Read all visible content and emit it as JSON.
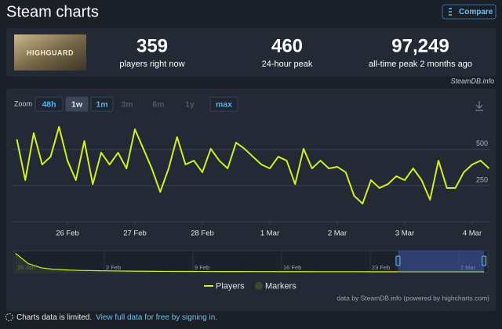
{
  "header": {
    "title": "Steam charts",
    "compare": "Compare"
  },
  "stats": {
    "image_text": "HIGHGUARD",
    "items": [
      {
        "value": "359",
        "label": "players right now"
      },
      {
        "value": "460",
        "label": "24-hour peak"
      },
      {
        "value": "97,249",
        "label": "all-time peak 2 months ago"
      }
    ],
    "source": "SteamDB.info"
  },
  "zoom": {
    "label": "Zoom",
    "options": [
      "48h",
      "1w",
      "1m",
      "3m",
      "6m",
      "1y",
      "max"
    ],
    "active_index": 1,
    "disabled_indices": [
      3,
      4,
      5
    ]
  },
  "chart_data": {
    "type": "line",
    "categories": [
      null,
      null,
      null,
      null,
      null,
      null,
      "26 Feb",
      null,
      null,
      null,
      null,
      null,
      null,
      null,
      "27 Feb",
      null,
      null,
      null,
      null,
      null,
      null,
      null,
      "28 Feb",
      null,
      null,
      null,
      null,
      null,
      null,
      null,
      "1 Mar",
      null,
      null,
      null,
      null,
      null,
      null,
      null,
      "2 Mar",
      null,
      null,
      null,
      null,
      null,
      null,
      null,
      "3 Mar",
      null,
      null,
      null,
      null,
      null,
      null,
      null,
      "4 Mar",
      null,
      null
    ],
    "series": [
      {
        "name": "Players",
        "color": "#d4ee1f",
        "values": [
          570,
          288,
          614,
          396,
          450,
          657,
          423,
          288,
          559,
          260,
          478,
          396,
          478,
          369,
          640,
          505,
          369,
          206,
          369,
          586,
          396,
          423,
          342,
          505,
          423,
          369,
          548,
          505,
          450,
          396,
          369,
          450,
          423,
          260,
          505,
          369,
          423,
          369,
          380,
          342,
          179,
          125,
          288,
          233,
          260,
          315,
          288,
          369,
          288,
          152,
          423,
          233,
          233,
          342,
          396,
          423,
          369
        ]
      }
    ],
    "ylim": [
      0,
      700
    ],
    "yticks": [
      250,
      500
    ],
    "grid": true,
    "extra_legend": [
      {
        "name": "Markers",
        "color": "#3e4a2c"
      }
    ]
  },
  "navigator": {
    "categories": [
      "26 Jan",
      null,
      null,
      null,
      null,
      null,
      null,
      "2 Feb",
      null,
      null,
      null,
      null,
      null,
      null,
      "9 Feb",
      null,
      null,
      null,
      null,
      null,
      null,
      "16 Feb",
      null,
      null,
      null,
      null,
      null,
      null,
      "23 Feb",
      null,
      null,
      null,
      null,
      null,
      null,
      "2 Mar",
      null,
      null
    ],
    "values": [
      90000,
      40000,
      20000,
      12000,
      9000,
      7000,
      6000,
      5000,
      4000,
      3500,
      3000,
      2500,
      2200,
      2000,
      1800,
      1600,
      1500,
      1400,
      1300,
      1200,
      1100,
      1000,
      900,
      850,
      800,
      750,
      700,
      650,
      600,
      550,
      500,
      480,
      460,
      440,
      420,
      400,
      380,
      380
    ],
    "ylim": [
      0,
      100000
    ],
    "selected": [
      30.2,
      37
    ]
  },
  "credit": "data by SteamDB.info (powered by highcharts.com)",
  "footer": {
    "notice": "Charts data is limited.",
    "link": "View full data for free by signing in."
  }
}
